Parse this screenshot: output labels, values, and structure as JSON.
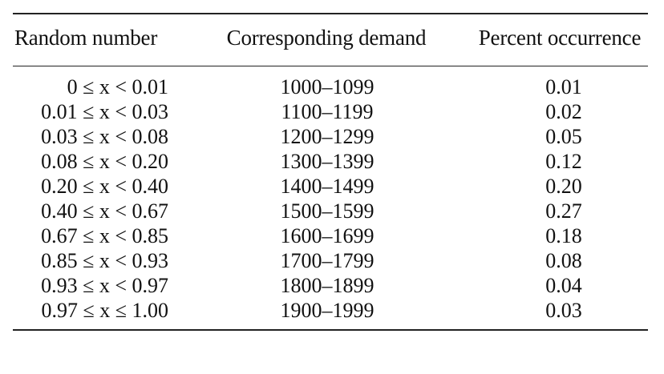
{
  "table": {
    "headers": {
      "random_number": "Random number",
      "corresponding_demand": "Corresponding demand",
      "percent_occurrence": "Percent occurrence"
    },
    "rows": [
      {
        "range": "0 ≤ x < 0.01",
        "demand": "1000–1099",
        "percent": "0.01"
      },
      {
        "range": "0.01 ≤ x < 0.03",
        "demand": "1100–1199",
        "percent": "0.02"
      },
      {
        "range": "0.03 ≤ x < 0.08",
        "demand": "1200–1299",
        "percent": "0.05"
      },
      {
        "range": "0.08 ≤ x < 0.20",
        "demand": "1300–1399",
        "percent": "0.12"
      },
      {
        "range": "0.20 ≤ x < 0.40",
        "demand": "1400–1499",
        "percent": "0.20"
      },
      {
        "range": "0.40 ≤ x < 0.67",
        "demand": "1500–1599",
        "percent": "0.27"
      },
      {
        "range": "0.67 ≤ x < 0.85",
        "demand": "1600–1699",
        "percent": "0.18"
      },
      {
        "range": "0.85 ≤ x < 0.93",
        "demand": "1700–1799",
        "percent": "0.08"
      },
      {
        "range": "0.93 ≤ x < 0.97",
        "demand": "1800–1899",
        "percent": "0.04"
      },
      {
        "range": "0.97 ≤ x ≤ 1.00",
        "demand": "1900–1999",
        "percent": "0.03"
      }
    ]
  }
}
